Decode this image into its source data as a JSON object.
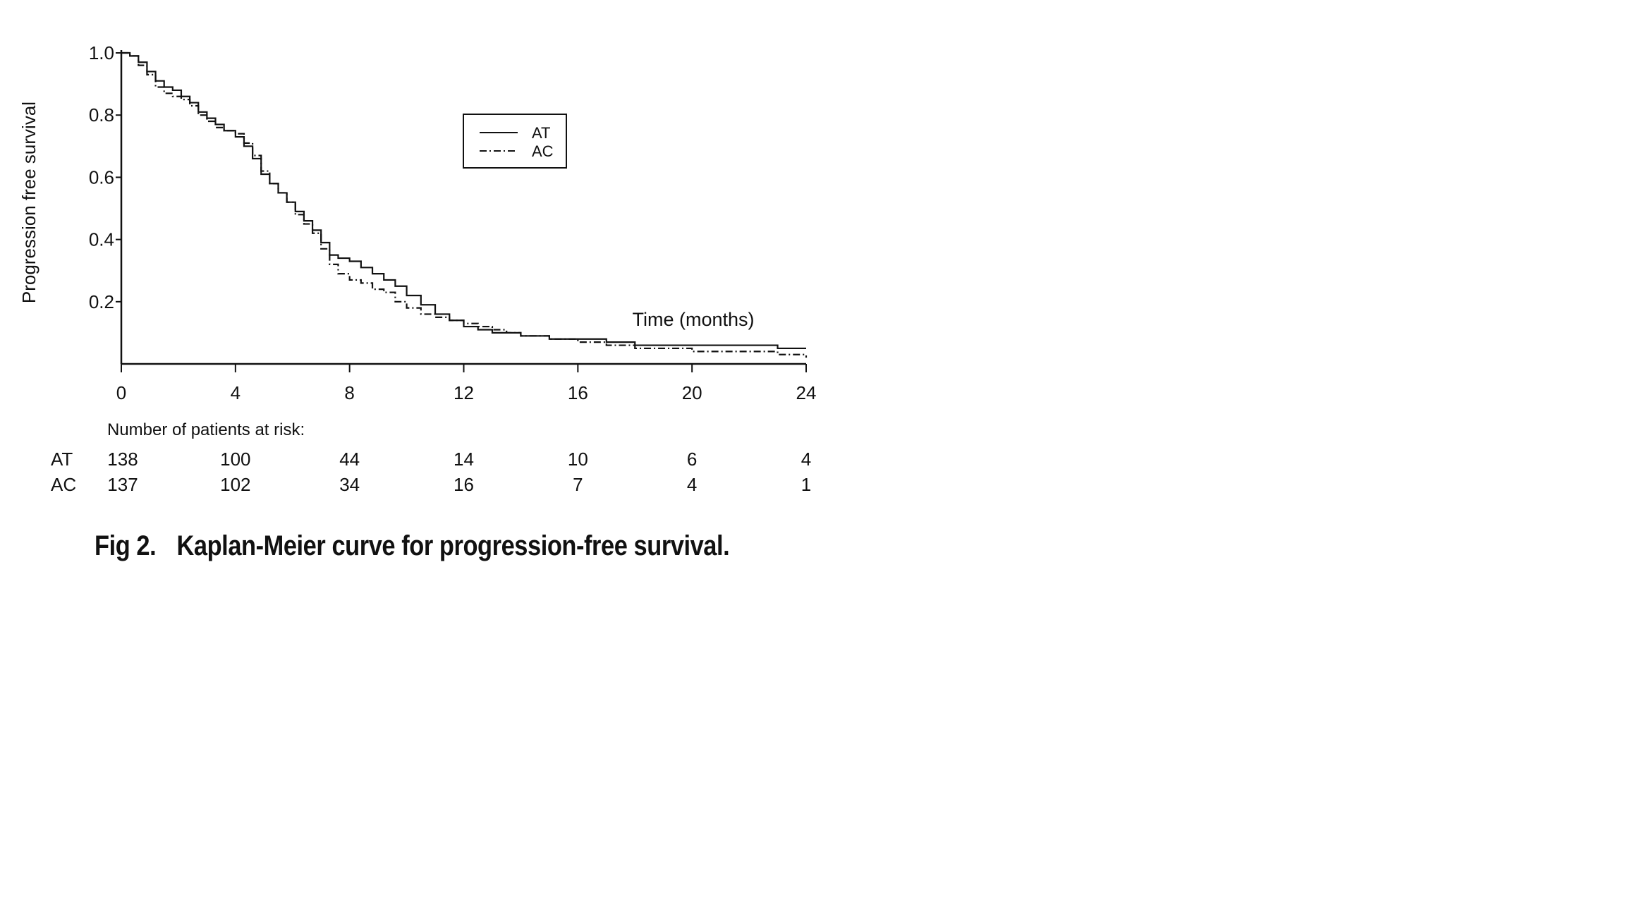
{
  "chart_data": {
    "type": "line",
    "subtype": "kaplan-meier-step",
    "xlabel": "Time (months)",
    "ylabel": "Progression free survival",
    "xlim": [
      0,
      24
    ],
    "ylim": [
      0,
      1.0
    ],
    "x_ticks": [
      0,
      4,
      8,
      12,
      16,
      20,
      24
    ],
    "y_ticks": [
      0.2,
      0.4,
      0.6,
      0.8,
      1.0
    ],
    "x_tick_labels": [
      "0",
      "4",
      "8",
      "12",
      "16",
      "20",
      "24"
    ],
    "y_tick_labels": [
      "0.2",
      "0.4",
      "0.6",
      "0.8",
      "1.0"
    ],
    "grid": false,
    "legend_position": "top-right",
    "series": [
      {
        "name": "AT",
        "line_style": "solid",
        "x": [
          0,
          0.3,
          0.6,
          0.9,
          1.2,
          1.5,
          1.8,
          2.1,
          2.4,
          2.7,
          3.0,
          3.3,
          3.6,
          4.0,
          4.3,
          4.6,
          4.9,
          5.2,
          5.5,
          5.8,
          6.1,
          6.4,
          6.7,
          7.0,
          7.3,
          7.6,
          8.0,
          8.4,
          8.8,
          9.2,
          9.6,
          10.0,
          10.5,
          11.0,
          11.5,
          12.0,
          12.5,
          13.0,
          13.5,
          14.0,
          15.0,
          16.0,
          17.0,
          18.0,
          19.0,
          20.0,
          21.0,
          22.0,
          23.0,
          24.0
        ],
        "y": [
          1.0,
          0.99,
          0.97,
          0.94,
          0.91,
          0.89,
          0.88,
          0.86,
          0.84,
          0.81,
          0.79,
          0.77,
          0.75,
          0.73,
          0.7,
          0.66,
          0.61,
          0.58,
          0.55,
          0.52,
          0.49,
          0.46,
          0.43,
          0.39,
          0.35,
          0.34,
          0.33,
          0.31,
          0.29,
          0.27,
          0.25,
          0.22,
          0.19,
          0.16,
          0.14,
          0.12,
          0.11,
          0.1,
          0.1,
          0.09,
          0.08,
          0.08,
          0.07,
          0.06,
          0.06,
          0.06,
          0.06,
          0.06,
          0.05,
          0.05
        ]
      },
      {
        "name": "AC",
        "line_style": "dash-dot",
        "x": [
          0,
          0.3,
          0.6,
          0.9,
          1.2,
          1.5,
          1.8,
          2.1,
          2.4,
          2.7,
          3.0,
          3.3,
          3.6,
          4.0,
          4.3,
          4.6,
          4.9,
          5.2,
          5.5,
          5.8,
          6.1,
          6.4,
          6.7,
          7.0,
          7.3,
          7.6,
          8.0,
          8.4,
          8.8,
          9.2,
          9.6,
          10.0,
          10.5,
          11.0,
          11.5,
          12.0,
          12.5,
          13.0,
          13.5,
          14.0,
          15.0,
          16.0,
          17.0,
          18.0,
          19.0,
          20.0,
          21.0,
          22.0,
          23.0,
          24.0
        ],
        "y": [
          1.0,
          0.99,
          0.96,
          0.93,
          0.89,
          0.87,
          0.86,
          0.85,
          0.83,
          0.8,
          0.78,
          0.76,
          0.75,
          0.74,
          0.71,
          0.67,
          0.62,
          0.58,
          0.55,
          0.52,
          0.48,
          0.45,
          0.42,
          0.37,
          0.32,
          0.29,
          0.27,
          0.26,
          0.24,
          0.23,
          0.2,
          0.18,
          0.16,
          0.15,
          0.14,
          0.13,
          0.12,
          0.11,
          0.1,
          0.09,
          0.08,
          0.07,
          0.06,
          0.05,
          0.05,
          0.04,
          0.04,
          0.04,
          0.03,
          0.02
        ]
      }
    ],
    "risk_table": {
      "title": "Number of patients at risk:",
      "times": [
        0,
        4,
        8,
        12,
        16,
        20,
        24
      ],
      "rows": [
        {
          "name": "AT",
          "values": [
            "138",
            "100",
            "44",
            "14",
            "10",
            "6",
            "4"
          ]
        },
        {
          "name": "AC",
          "values": [
            "137",
            "102",
            "34",
            "16",
            "7",
            "4",
            "1"
          ]
        }
      ]
    }
  },
  "caption": {
    "label": "Fig 2.",
    "text": "Kaplan-Meier curve for progression-free survival."
  }
}
